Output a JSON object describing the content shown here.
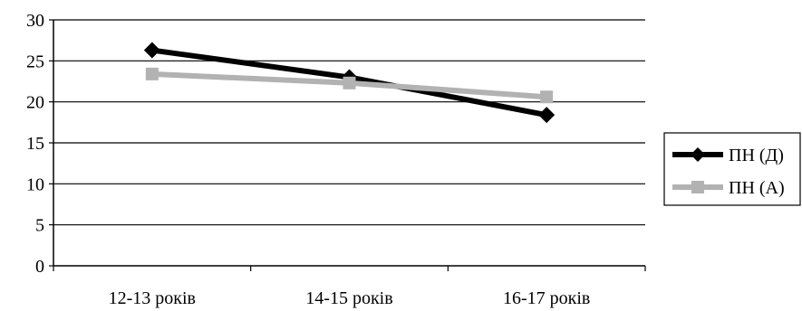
{
  "chart_data": {
    "type": "line",
    "categories": [
      "12-13 років",
      "14-15 років",
      "16-17 років"
    ],
    "series": [
      {
        "name": "ПН (Д)",
        "values": [
          26.3,
          23.0,
          18.4
        ],
        "color": "#000000",
        "marker": "diamond"
      },
      {
        "name": "ПН (А)",
        "values": [
          23.4,
          22.3,
          20.6
        ],
        "color": "#b2b2b2",
        "marker": "square"
      }
    ],
    "ylim": [
      0,
      30
    ],
    "yticks": [
      "0",
      "5",
      "10",
      "15",
      "20",
      "25",
      "30"
    ],
    "grid": true,
    "legend_position": "right",
    "title": "",
    "xlabel": "",
    "ylabel": ""
  }
}
